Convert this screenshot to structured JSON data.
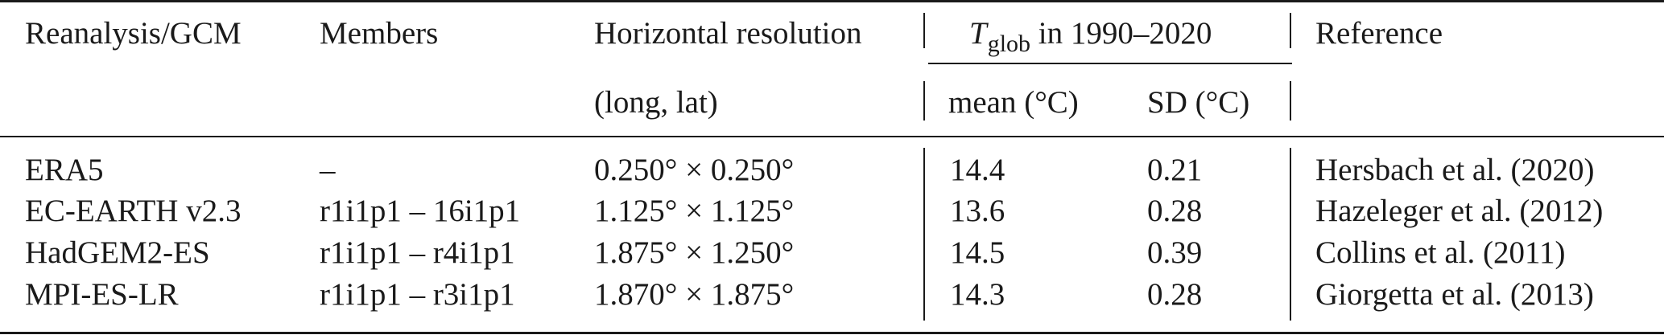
{
  "table": {
    "header": {
      "col_model": "Reanalysis/GCM",
      "col_members": "Members",
      "col_resolution": "Horizontal resolution",
      "col_resolution_sub": "(long, lat)",
      "col_tglob_symbol": "T",
      "col_tglob_subscript": "glob",
      "col_tglob_rest": "in 1990–2020",
      "col_mean": "mean (°C)",
      "col_sd": "SD (°C)",
      "col_reference": "Reference"
    },
    "rows": [
      {
        "model": "ERA5",
        "members": "–",
        "resolution": "0.250° × 0.250°",
        "mean": "14.4",
        "sd": "0.21",
        "reference": "Hersbach et al. (2020)"
      },
      {
        "model": "EC-EARTH v2.3",
        "members": "r1i1p1 – 16i1p1",
        "resolution": "1.125° × 1.125°",
        "mean": "13.6",
        "sd": "0.28",
        "reference": "Hazeleger et al. (2012)"
      },
      {
        "model": "HadGEM2-ES",
        "members": "r1i1p1 – r4i1p1",
        "resolution": "1.875° × 1.250°",
        "mean": "14.5",
        "sd": "0.39",
        "reference": "Collins et al. (2011)"
      },
      {
        "model": "MPI-ES-LR",
        "members": "r1i1p1 – r3i1p1",
        "resolution": "1.870° × 1.875°",
        "mean": "14.3",
        "sd": "0.28",
        "reference": "Giorgetta et al. (2013)"
      }
    ]
  }
}
